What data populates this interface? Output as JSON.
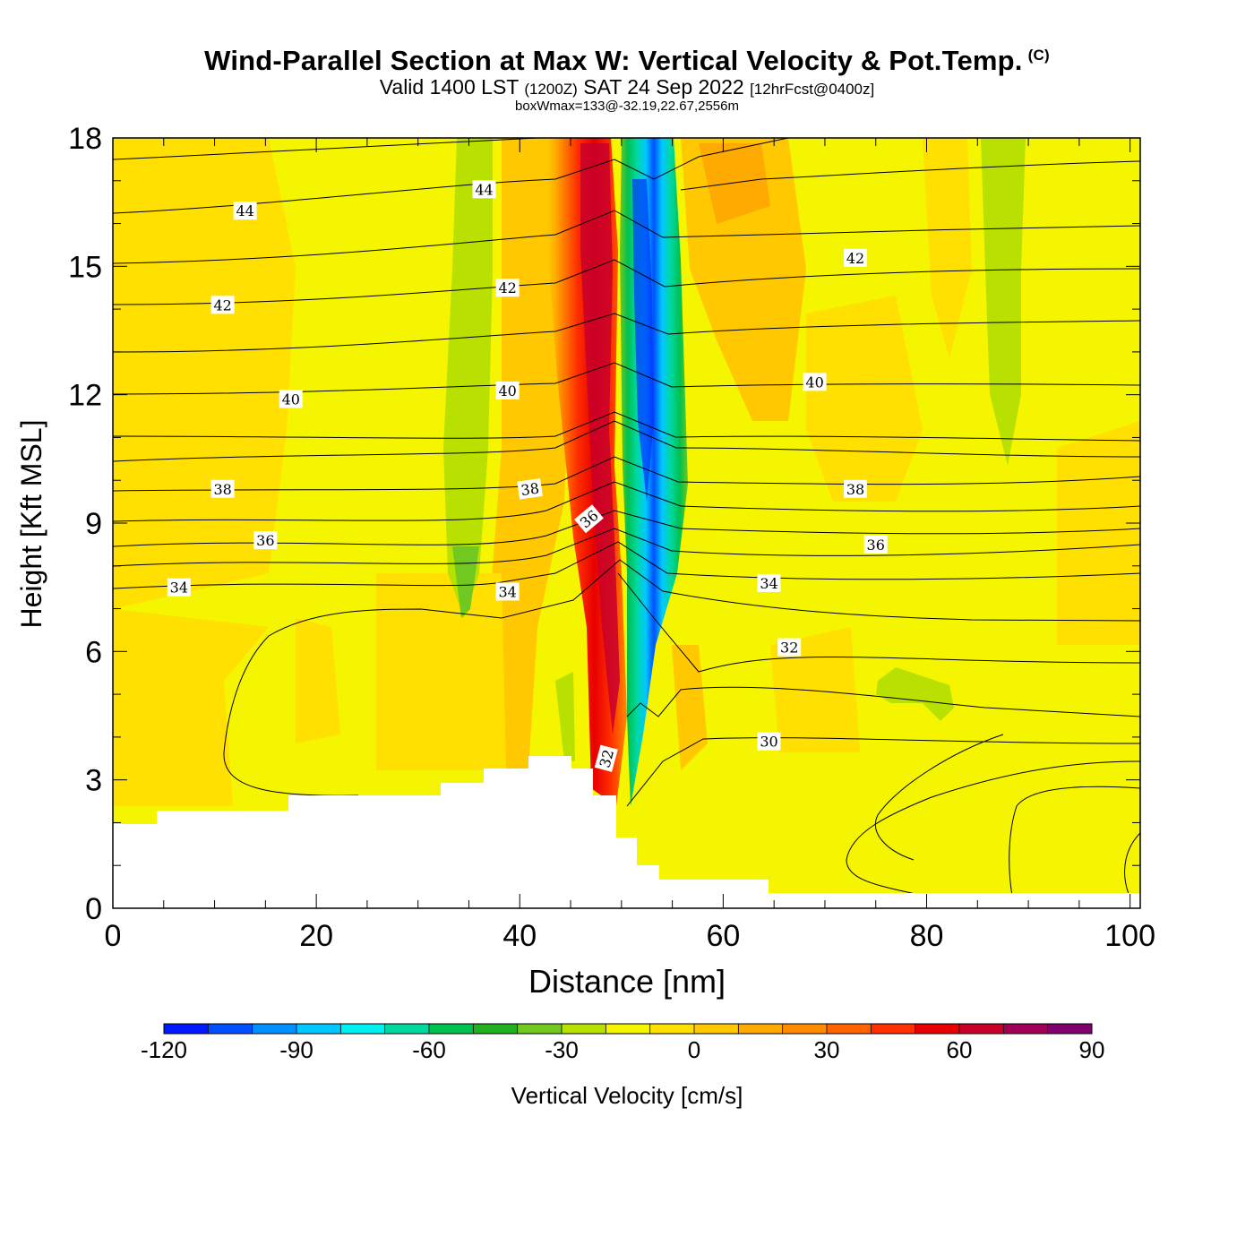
{
  "chart_data": {
    "type": "heatmap",
    "title": "Wind-Parallel Section at Max W: Vertical Velocity & Pot.Temp.",
    "title_mark": "(C)",
    "subtitle": {
      "valid": "Valid 1400 LST",
      "utc": "(1200Z)",
      "date": "SAT 24 Sep 2022",
      "forecast": "[12hrFcst@0400z]"
    },
    "annotation": "boxWmax=133@-32.19,22.67,2556m",
    "xlabel": "Distance [nm]",
    "ylabel": "Height [Kft MSL]",
    "xlim": [
      0,
      101
    ],
    "ylim": [
      0,
      18
    ],
    "x_ticks": [
      "0",
      "20",
      "40",
      "60",
      "80",
      "100"
    ],
    "y_ticks": [
      "0",
      "3",
      "6",
      "9",
      "12",
      "15",
      "18"
    ],
    "colorbar": {
      "label": "Vertical Velocity [cm/s]",
      "range": [
        -120,
        100
      ],
      "step": 10,
      "tick_labels": [
        "-120",
        "-90",
        "-60",
        "-30",
        "0",
        "30",
        "60",
        "90"
      ],
      "colors": [
        "#0019ff",
        "#0050ff",
        "#0090ff",
        "#00c8ff",
        "#00f0f0",
        "#00d8a0",
        "#00c050",
        "#20b020",
        "#70c820",
        "#b8e000",
        "#f5f500",
        "#ffe000",
        "#ffc800",
        "#ffaa00",
        "#ff8c00",
        "#ff6400",
        "#ff3000",
        "#e80000",
        "#c8002a",
        "#a00055",
        "#800070"
      ]
    },
    "theta_labels": [
      {
        "text": "44",
        "x": 13,
        "y": 16.3,
        "rot": 0
      },
      {
        "text": "44",
        "x": 36.5,
        "y": 16.8,
        "rot": 0
      },
      {
        "text": "42",
        "x": 10.8,
        "y": 14.1,
        "rot": 0
      },
      {
        "text": "42",
        "x": 38.8,
        "y": 14.5,
        "rot": 0
      },
      {
        "text": "42",
        "x": 73,
        "y": 15.2,
        "rot": 0
      },
      {
        "text": "40",
        "x": 17.5,
        "y": 11.9,
        "rot": 0
      },
      {
        "text": "40",
        "x": 38.8,
        "y": 12.1,
        "rot": 0
      },
      {
        "text": "40",
        "x": 69,
        "y": 12.3,
        "rot": 0
      },
      {
        "text": "38",
        "x": 10.8,
        "y": 9.8,
        "rot": 0
      },
      {
        "text": "38",
        "x": 41,
        "y": 9.8,
        "rot": -8
      },
      {
        "text": "38",
        "x": 73,
        "y": 9.8,
        "rot": 0
      },
      {
        "text": "36",
        "x": 15,
        "y": 8.6,
        "rot": 0
      },
      {
        "text": "36",
        "x": 46.8,
        "y": 9.1,
        "rot": -40
      },
      {
        "text": "36",
        "x": 75,
        "y": 8.5,
        "rot": 0
      },
      {
        "text": "34",
        "x": 6.5,
        "y": 7.5,
        "rot": 0
      },
      {
        "text": "34",
        "x": 38.8,
        "y": 7.4,
        "rot": 0
      },
      {
        "text": "34",
        "x": 64.5,
        "y": 7.6,
        "rot": 0
      },
      {
        "text": "32",
        "x": 48.5,
        "y": 3.5,
        "rot": -75
      },
      {
        "text": "32",
        "x": 66.5,
        "y": 6.1,
        "rot": 0
      },
      {
        "text": "30",
        "x": 64.5,
        "y": 3.9,
        "rot": 0
      }
    ]
  }
}
